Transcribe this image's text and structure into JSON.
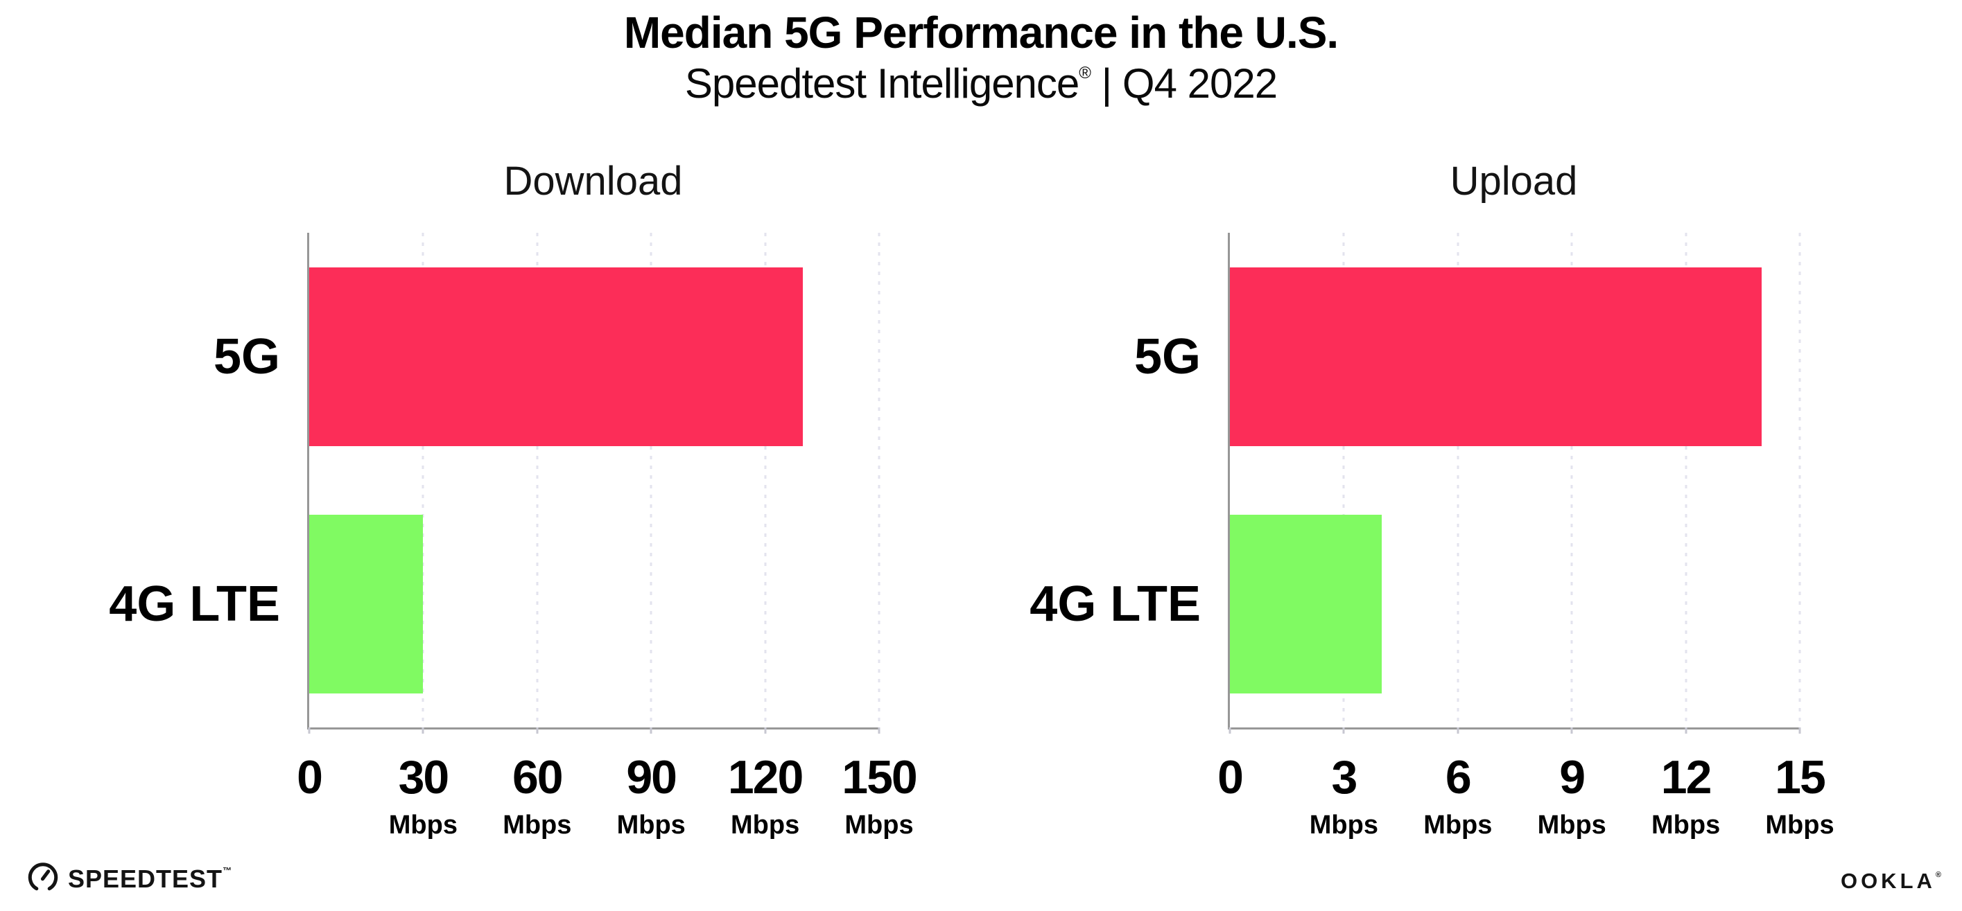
{
  "header": {
    "title": "Median 5G Performance in the U.S.",
    "subtitle_brand": "Speedtest Intelligence",
    "subtitle_reg": "®",
    "subtitle_rest": " | Q4 2022"
  },
  "chart_data": [
    {
      "type": "bar",
      "orientation": "horizontal",
      "title": "Download",
      "categories": [
        "5G",
        "4G LTE"
      ],
      "values": [
        130,
        30
      ],
      "unit": "Mbps",
      "xlim": [
        0,
        150
      ],
      "xticks": [
        0,
        30,
        60,
        90,
        120,
        150
      ],
      "bar_colors": [
        "#FC2D58",
        "#80FA62"
      ],
      "grid": "vertical-dotted",
      "legend": "none"
    },
    {
      "type": "bar",
      "orientation": "horizontal",
      "title": "Upload",
      "categories": [
        "5G",
        "4G LTE"
      ],
      "values": [
        14,
        4
      ],
      "unit": "Mbps",
      "xlim": [
        0,
        15
      ],
      "xticks": [
        0,
        3,
        6,
        9,
        12,
        15
      ],
      "bar_colors": [
        "#FC2D58",
        "#80FA62"
      ],
      "grid": "vertical-dotted",
      "legend": "none"
    }
  ],
  "style": {
    "bar_color_5g": "#FC2D58",
    "bar_color_4g": "#80FA62",
    "axis_color": "#979797",
    "gridline_color": "#e3e3ee",
    "background": "#ffffff"
  },
  "footer": {
    "speedtest_label": "SPEEDTEST",
    "speedtest_mark": "™",
    "ookla_label": "OOKLA",
    "ookla_mark": "®"
  }
}
